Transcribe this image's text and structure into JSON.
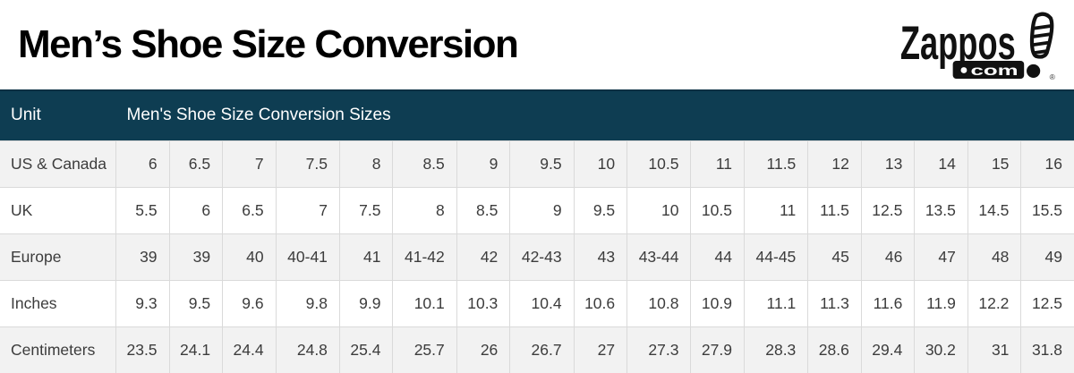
{
  "page": {
    "title": "Men’s Shoe Size Conversion"
  },
  "logo": {
    "brand": "Zappos",
    "domain": "com",
    "registered": "®"
  },
  "table": {
    "header": {
      "unit": "Unit",
      "sizes": "Men's Shoe Size Conversion Sizes"
    },
    "rows": [
      {
        "label": "US & Canada",
        "values": [
          "6",
          "6.5",
          "7",
          "7.5",
          "8",
          "8.5",
          "9",
          "9.5",
          "10",
          "10.5",
          "11",
          "11.5",
          "12",
          "13",
          "14",
          "15",
          "16"
        ]
      },
      {
        "label": "UK",
        "values": [
          "5.5",
          "6",
          "6.5",
          "7",
          "7.5",
          "8",
          "8.5",
          "9",
          "9.5",
          "10",
          "10.5",
          "11",
          "11.5",
          "12.5",
          "13.5",
          "14.5",
          "15.5"
        ]
      },
      {
        "label": "Europe",
        "values": [
          "39",
          "39",
          "40",
          "40-41",
          "41",
          "41-42",
          "42",
          "42-43",
          "43",
          "43-44",
          "44",
          "44-45",
          "45",
          "46",
          "47",
          "48",
          "49"
        ]
      },
      {
        "label": "Inches",
        "values": [
          "9.3",
          "9.5",
          "9.6",
          "9.8",
          "9.9",
          "10.1",
          "10.3",
          "10.4",
          "10.6",
          "10.8",
          "10.9",
          "11.1",
          "11.3",
          "11.6",
          "11.9",
          "12.2",
          "12.5"
        ]
      },
      {
        "label": "Centimeters",
        "values": [
          "23.5",
          "24.1",
          "24.4",
          "24.8",
          "25.4",
          "25.7",
          "26",
          "26.7",
          "27",
          "27.3",
          "27.9",
          "28.3",
          "28.6",
          "29.4",
          "30.2",
          "31",
          "31.8"
        ]
      }
    ]
  },
  "colors": {
    "header_bg": "#0e3d52",
    "row_alt_bg": "#f2f2f2",
    "row_bg": "#ffffff",
    "cell_border": "#dadada",
    "body_text": "#3c3c3c",
    "header_text": "#ffffff",
    "title_text": "#000000",
    "logo_black": "#111111"
  }
}
